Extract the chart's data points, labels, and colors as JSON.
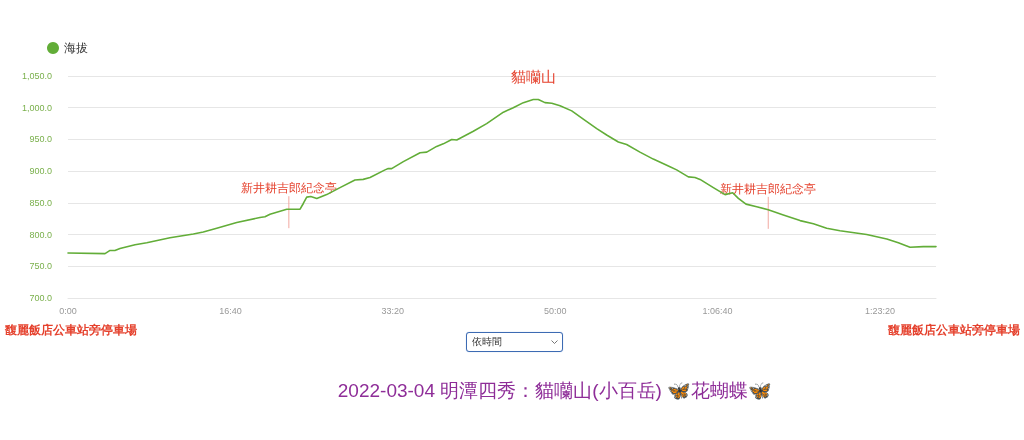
{
  "chart_data": {
    "type": "line",
    "title": "2022-03-04 明潭四秀：貓囒山(小百岳) 🦋花蝴蝶🦋",
    "x": [
      0,
      228,
      259,
      289,
      320,
      413,
      485,
      628,
      772,
      833,
      916,
      1039,
      1182,
      1213,
      1244,
      1347,
      1429,
      1449,
      1470,
      1495,
      1532,
      1593,
      1675,
      1767,
      1818,
      1860,
      1952,
      1972,
      1993,
      2065,
      2168,
      2209,
      2270,
      2311,
      2363,
      2394,
      2496,
      2578,
      2681,
      2742,
      2804,
      2865,
      2896,
      2937,
      2979,
      3030,
      3102,
      3173,
      3256,
      3317,
      3389,
      3440,
      3522,
      3604,
      3707,
      3748,
      3820,
      3861,
      3892,
      3974,
      4046,
      4093,
      4128,
      4175,
      4241,
      4312,
      4405,
      4508,
      4590,
      4672,
      4754,
      4918,
      5042,
      5113,
      5185,
      5267,
      5345
    ],
    "series": [
      {
        "name": "海拔",
        "color": "#62ad38",
        "values": [
          771,
          770,
          775,
          775,
          778,
          784,
          787,
          795,
          801,
          804,
          810,
          819,
          827,
          828,
          832,
          840,
          840,
          849,
          859,
          860,
          857,
          863,
          874,
          886,
          887,
          890,
          902,
          904,
          904,
          915,
          929,
          930,
          939,
          943,
          950,
          949,
          963,
          975,
          993,
          1000,
          1008,
          1013,
          1013,
          1008,
          1007,
          1003,
          995,
          982,
          967,
          957,
          946,
          942,
          930,
          919,
          907,
          902,
          891,
          890,
          887,
          874,
          863,
          866,
          857,
          848,
          844,
          839,
          831,
          822,
          817,
          810,
          806,
          800,
          793,
          787,
          780,
          781,
          781
        ]
      }
    ],
    "xlim": [
      0,
      5345
    ],
    "xticks": [
      {
        "value": 0,
        "label": "0:00"
      },
      {
        "value": 1000,
        "label": "16:40"
      },
      {
        "value": 2000,
        "label": "33:20"
      },
      {
        "value": 3000,
        "label": "50:00"
      },
      {
        "value": 4000,
        "label": "1:06:40"
      },
      {
        "value": 5000,
        "label": "1:23:20"
      }
    ],
    "ylim": [
      700,
      1050
    ],
    "yticks": [
      {
        "value": 700,
        "label": "700.0"
      },
      {
        "value": 750,
        "label": "750.0"
      },
      {
        "value": 800,
        "label": "800.0"
      },
      {
        "value": 850,
        "label": "850.0"
      },
      {
        "value": 900,
        "label": "900.0"
      },
      {
        "value": 950,
        "label": "950.0"
      },
      {
        "value": 1000,
        "label": "1,000.0"
      },
      {
        "value": 1050,
        "label": "1,050.0"
      }
    ],
    "grid": "y",
    "legend": "top left",
    "line_style": "solid",
    "annotations": [
      {
        "text": "貓囒山",
        "x": 2865,
        "y": 1013
      },
      {
        "text": "新井耕吉郎紀念亭",
        "x": 1360,
        "y": 840
      },
      {
        "text": "新井耕吉郎紀念亭",
        "x": 4312,
        "y": 839
      },
      "馥麗飯店公車站旁停車場",
      "馥麗飯店公車站旁停車場",
      "依時間"
    ]
  }
}
